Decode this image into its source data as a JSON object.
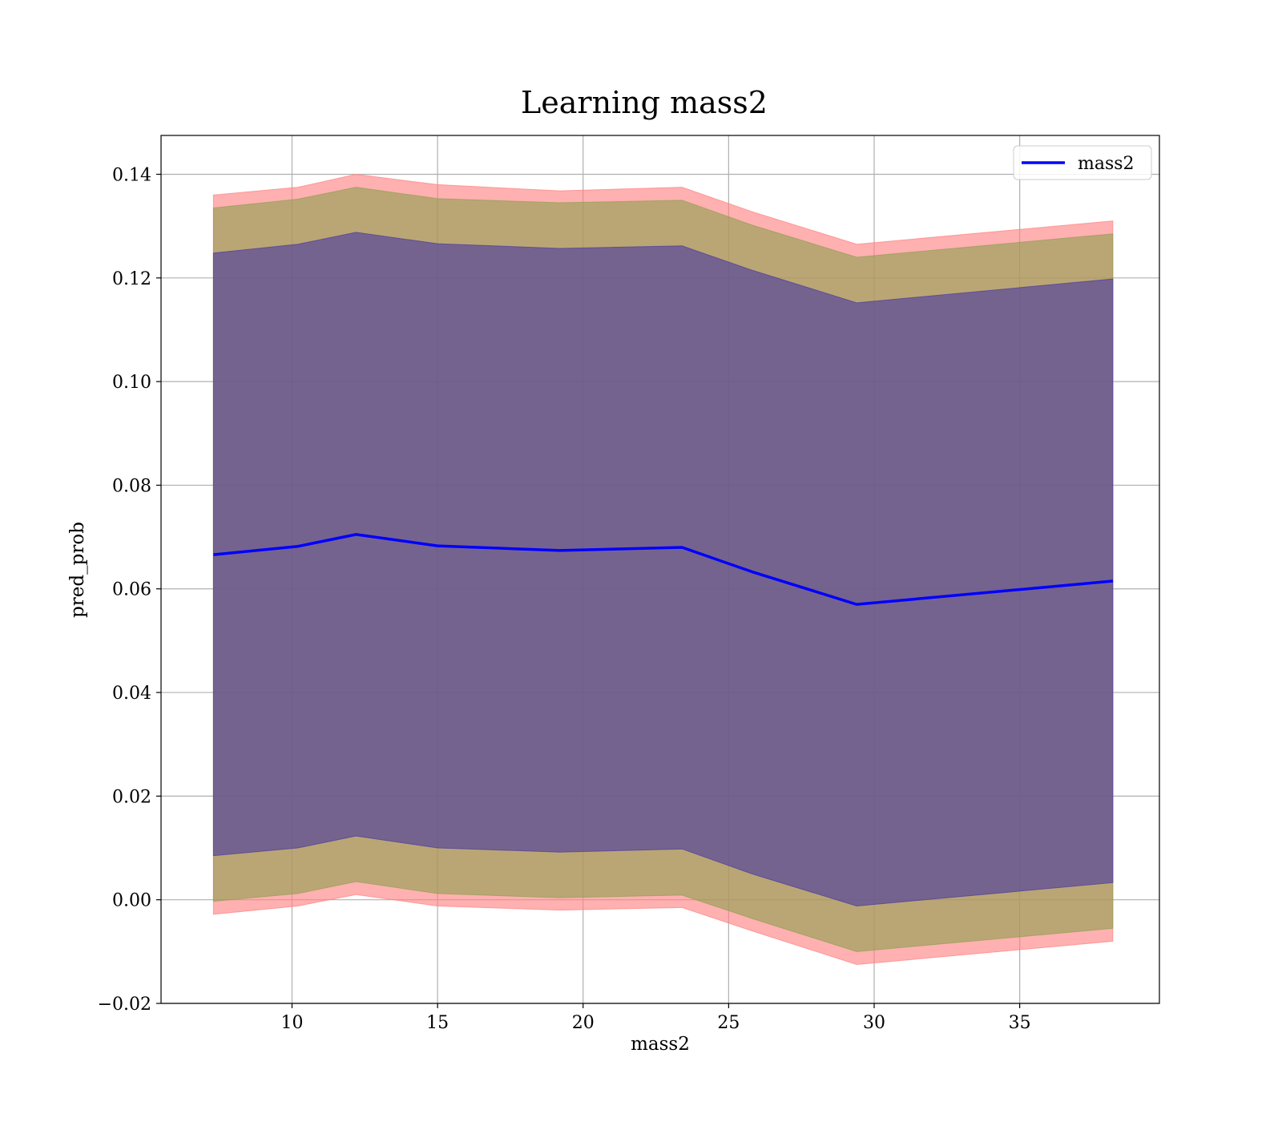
{
  "chart_data": {
    "type": "line",
    "title": "Learning mass2",
    "xlabel": "mass2",
    "ylabel": "pred_prob",
    "xlim": [
      5.5,
      39.8
    ],
    "ylim": [
      -0.02,
      0.1475
    ],
    "xticks": [
      10,
      15,
      20,
      25,
      30,
      35
    ],
    "yticks": [
      -0.02,
      0.0,
      0.02,
      0.04,
      0.06,
      0.08,
      0.1,
      0.12,
      0.14
    ],
    "xtick_labels": [
      "10",
      "15",
      "20",
      "25",
      "30",
      "35"
    ],
    "ytick_labels": [
      "−0.02",
      "0.00",
      "0.02",
      "0.04",
      "0.06",
      "0.08",
      "0.10",
      "0.12",
      "0.14"
    ],
    "grid": true,
    "legend": {
      "placement": "top-right",
      "entries": [
        "mass2"
      ]
    },
    "x": [
      7.3,
      10.2,
      12.2,
      15.0,
      19.2,
      23.4,
      25.8,
      29.4,
      38.2
    ],
    "series": [
      {
        "name": "mass2",
        "color": "#0000ff",
        "values": [
          0.0666,
          0.0682,
          0.0705,
          0.0683,
          0.0674,
          0.068,
          0.0633,
          0.057,
          0.0615
        ]
      }
    ],
    "bands": [
      {
        "label": "outer",
        "color": "#ff8080",
        "upper": [
          0.136,
          0.1375,
          0.14,
          0.138,
          0.1368,
          0.1375,
          0.1328,
          0.1265,
          0.131
        ],
        "lower": [
          -0.0028,
          -0.0012,
          0.001,
          -0.0012,
          -0.002,
          -0.0015,
          -0.006,
          -0.0125,
          -0.008
        ]
      },
      {
        "label": "middle",
        "color": "#8fa050",
        "upper": [
          0.1335,
          0.1352,
          0.1375,
          0.1353,
          0.1345,
          0.135,
          0.1302,
          0.124,
          0.1285
        ],
        "lower": [
          -0.0003,
          0.0012,
          0.0035,
          0.0012,
          0.0004,
          0.0009,
          -0.0036,
          -0.01,
          -0.0055
        ]
      },
      {
        "label": "inner",
        "color": "#4a3aa0",
        "upper": [
          0.1248,
          0.1265,
          0.1288,
          0.1266,
          0.1257,
          0.1262,
          0.1215,
          0.1152,
          0.1198
        ],
        "lower": [
          0.0085,
          0.01,
          0.0123,
          0.01,
          0.0092,
          0.0098,
          0.005,
          -0.0012,
          0.0033
        ]
      }
    ]
  }
}
